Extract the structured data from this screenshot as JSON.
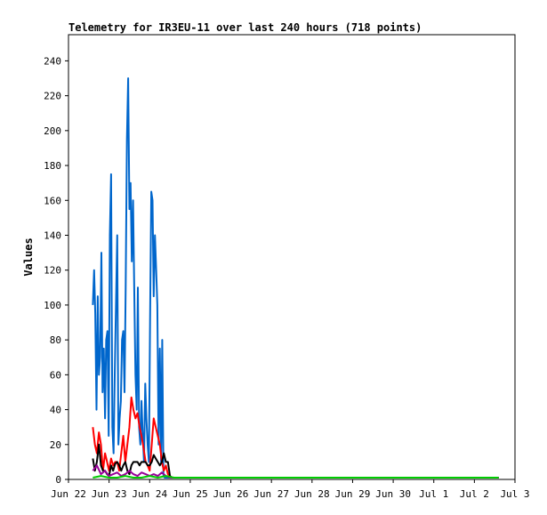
{
  "chart_data": {
    "type": "line",
    "title": "Telemetry for IR3EU-11 over last 240 hours (718 points)",
    "xlabel": "",
    "ylabel": "Values",
    "ylim": [
      0,
      255
    ],
    "xlim": [
      0,
      11
    ],
    "x_tick_labels": [
      "Jun 22",
      "Jun 23",
      "Jun 24",
      "Jun 25",
      "Jun 26",
      "Jun 27",
      "Jun 28",
      "Jun 29",
      "Jun 30",
      "Jul 1",
      "Jul 2",
      "Jul 3"
    ],
    "y_ticks": [
      0,
      20,
      40,
      60,
      80,
      100,
      120,
      140,
      160,
      180,
      200,
      220,
      240
    ],
    "grid": false,
    "series": [
      {
        "color": "#0066cc",
        "x": [
          0.6,
          0.63,
          0.66,
          0.69,
          0.72,
          0.75,
          0.78,
          0.81,
          0.84,
          0.87,
          0.9,
          0.93,
          0.96,
          0.99,
          1.02,
          1.05,
          1.08,
          1.11,
          1.14,
          1.17,
          1.2,
          1.23,
          1.26,
          1.29,
          1.32,
          1.35,
          1.38,
          1.41,
          1.44,
          1.47,
          1.5,
          1.53,
          1.56,
          1.59,
          1.62,
          1.65,
          1.68,
          1.71,
          1.74,
          1.77,
          1.8,
          1.83,
          1.86,
          1.89,
          1.92,
          1.95,
          1.98,
          2.01,
          2.04,
          2.07,
          2.1,
          2.13,
          2.16,
          2.19,
          2.22,
          2.25,
          2.28,
          2.31,
          2.34,
          2.37,
          2.4,
          2.43,
          2.46,
          2.49,
          2.52,
          2.55,
          2.58,
          2.61,
          2.64,
          2.67,
          2.7,
          2.73,
          2.75,
          2.8,
          3.0,
          4.0,
          5.0,
          6.0,
          7.0,
          8.0,
          9.0,
          10.0,
          10.6
        ],
        "y": [
          100,
          120,
          95,
          40,
          105,
          60,
          70,
          130,
          50,
          75,
          35,
          80,
          85,
          25,
          140,
          175,
          30,
          15,
          60,
          100,
          140,
          20,
          35,
          45,
          80,
          85,
          50,
          110,
          195,
          230,
          155,
          170,
          125,
          160,
          110,
          60,
          40,
          110,
          30,
          20,
          45,
          25,
          10,
          55,
          35,
          20,
          10,
          90,
          165,
          160,
          105,
          140,
          120,
          100,
          20,
          75,
          10,
          80,
          2,
          1,
          1,
          1,
          1,
          1,
          1,
          1,
          1,
          1,
          1,
          1,
          1,
          1,
          1,
          1,
          1,
          1,
          1,
          1,
          1,
          1,
          1,
          1,
          1
        ]
      },
      {
        "color": "#ff0000",
        "x": [
          0.6,
          0.65,
          0.7,
          0.75,
          0.8,
          0.85,
          0.9,
          0.95,
          1.0,
          1.05,
          1.1,
          1.15,
          1.2,
          1.25,
          1.3,
          1.35,
          1.4,
          1.45,
          1.5,
          1.55,
          1.6,
          1.65,
          1.7,
          1.75,
          1.8,
          1.85,
          1.9,
          1.95,
          2.0,
          2.05,
          2.1,
          2.15,
          2.2,
          2.25,
          2.3,
          2.35,
          2.4,
          2.45,
          2.5,
          2.55,
          2.6,
          2.65,
          2.7,
          2.75,
          2.8,
          3.0,
          5.0,
          7.0,
          9.0,
          10.6
        ],
        "y": [
          30,
          20,
          15,
          27,
          20,
          5,
          15,
          10,
          5,
          12,
          8,
          10,
          10,
          5,
          15,
          25,
          10,
          20,
          30,
          47,
          40,
          35,
          38,
          30,
          25,
          18,
          10,
          8,
          5,
          20,
          35,
          30,
          25,
          20,
          10,
          5,
          8,
          3,
          2,
          1,
          1,
          1,
          1,
          1,
          1,
          1,
          1,
          1,
          1,
          1
        ]
      },
      {
        "color": "#000000",
        "x": [
          0.6,
          0.65,
          0.7,
          0.75,
          0.8,
          0.85,
          0.9,
          0.95,
          1.0,
          1.05,
          1.1,
          1.15,
          1.2,
          1.25,
          1.3,
          1.35,
          1.4,
          1.45,
          1.5,
          1.55,
          1.6,
          1.65,
          1.7,
          1.75,
          1.8,
          1.85,
          1.9,
          1.95,
          2.0,
          2.05,
          2.1,
          2.15,
          2.2,
          2.25,
          2.3,
          2.35,
          2.4,
          2.45,
          2.5,
          2.55,
          2.6,
          2.65,
          2.7,
          2.75,
          2.8,
          3.0,
          5.0,
          7.0,
          9.0,
          10.6
        ],
        "y": [
          12,
          5,
          10,
          20,
          8,
          5,
          5,
          3,
          2,
          8,
          5,
          9,
          10,
          8,
          5,
          8,
          10,
          5,
          3,
          8,
          10,
          10,
          10,
          8,
          10,
          10,
          10,
          8,
          8,
          10,
          14,
          12,
          10,
          8,
          10,
          15,
          10,
          10,
          2,
          1,
          1,
          1,
          1,
          1,
          1,
          1,
          1,
          1,
          1,
          1
        ]
      },
      {
        "color": "#990099",
        "x": [
          0.6,
          0.7,
          0.8,
          0.9,
          1.0,
          1.1,
          1.2,
          1.3,
          1.4,
          1.5,
          1.6,
          1.7,
          1.8,
          1.9,
          2.0,
          2.1,
          2.2,
          2.3,
          2.4,
          2.5,
          2.6,
          2.7,
          2.8,
          3.0,
          5.0,
          7.0,
          9.0,
          10.6
        ],
        "y": [
          5,
          8,
          3,
          5,
          2,
          3,
          4,
          2,
          3,
          5,
          3,
          2,
          4,
          3,
          2,
          3,
          2,
          4,
          2,
          1,
          1,
          1,
          1,
          1,
          1,
          1,
          1,
          1
        ]
      },
      {
        "color": "#00cc00",
        "x": [
          0.6,
          0.8,
          1.0,
          1.2,
          1.4,
          1.6,
          1.8,
          2.0,
          2.2,
          2.4,
          2.6,
          2.8,
          3.0,
          5.0,
          7.0,
          9.0,
          10.6
        ],
        "y": [
          1,
          2,
          1,
          1,
          2,
          1,
          1,
          2,
          1,
          2,
          1,
          1,
          1,
          1,
          1,
          1,
          1
        ]
      }
    ]
  }
}
